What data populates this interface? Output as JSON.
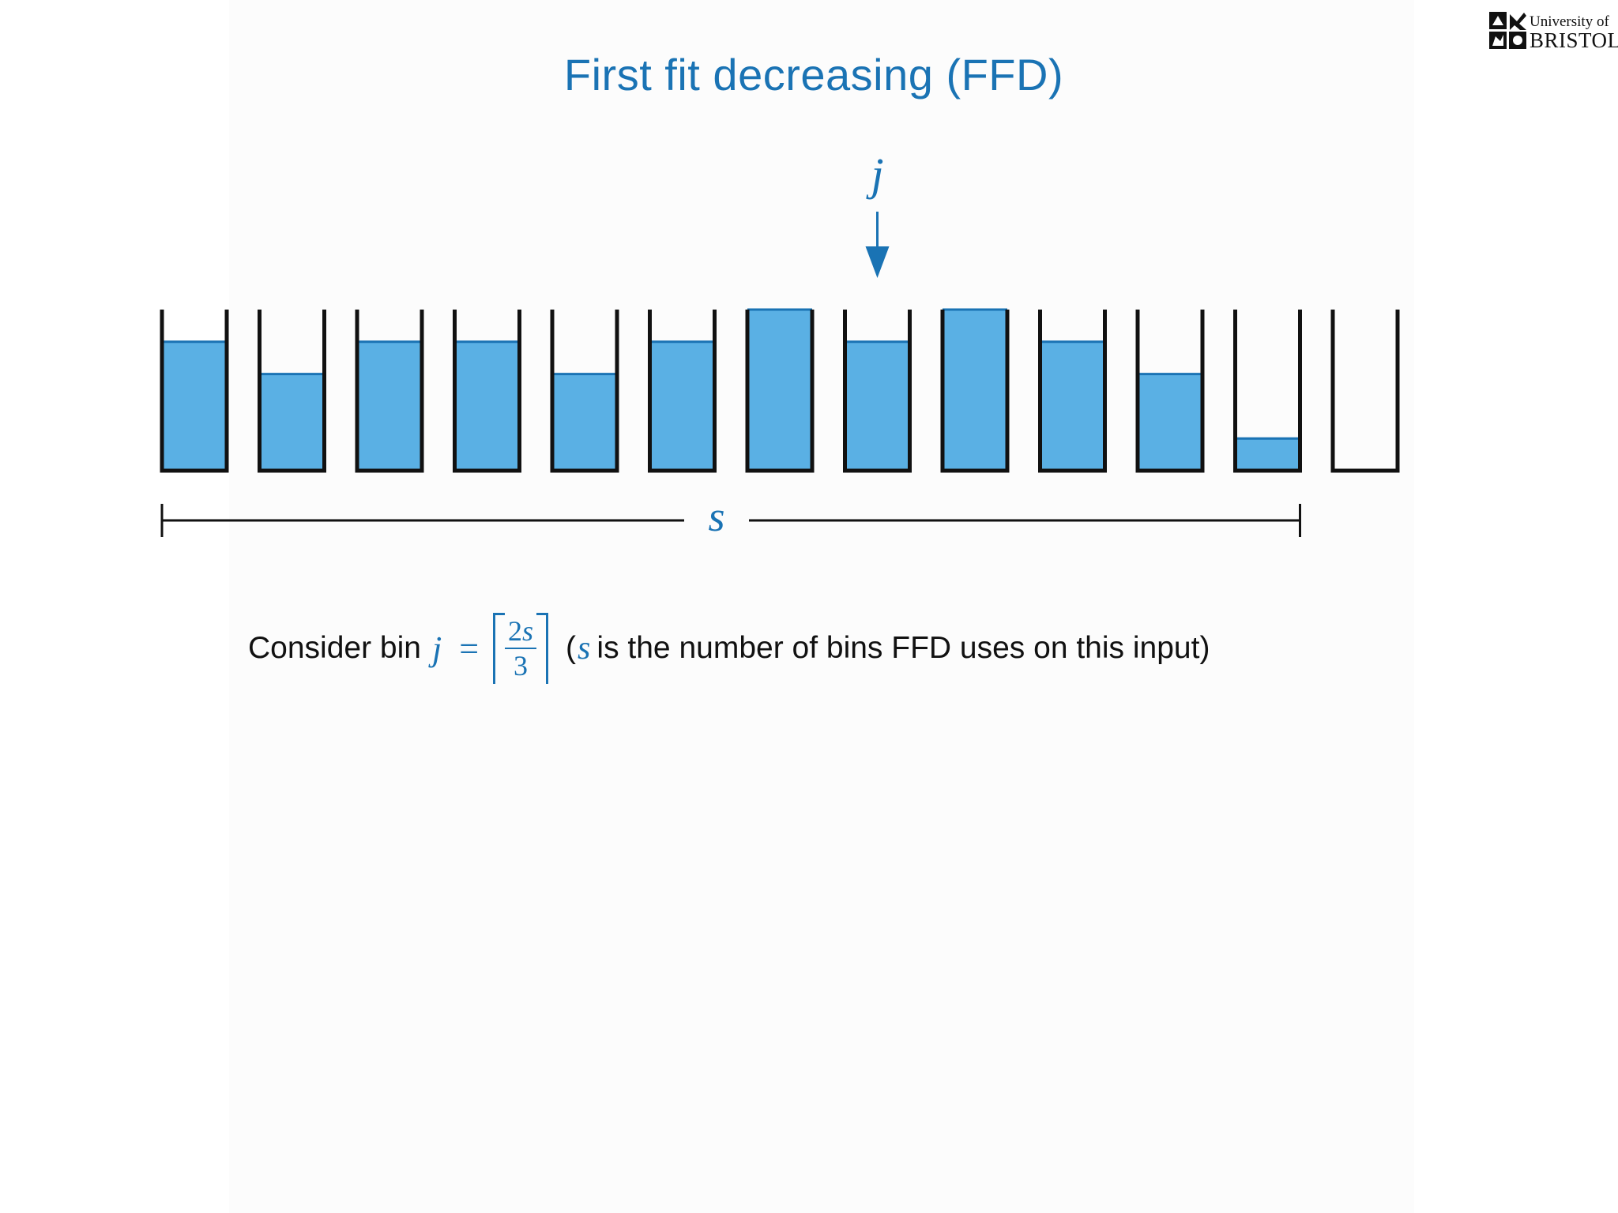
{
  "slide": {
    "title": "First fit decreasing (FFD)",
    "logo": {
      "line1": "University of",
      "line2": "BRISTOL"
    }
  },
  "diagram": {
    "pointer_label": "j",
    "pointer_bin_index": 7,
    "span_label": "s",
    "span_bins": 12,
    "fill_color": "#5ab0e4",
    "fill_edge_color": "#1a73b4",
    "bin_fills": [
      0.8,
      0.6,
      0.8,
      0.8,
      0.6,
      0.8,
      1.0,
      0.8,
      1.0,
      0.8,
      0.6,
      0.2,
      0.0
    ]
  },
  "caption": {
    "prefix": "Consider bin",
    "var_j": "j",
    "equals": "=",
    "frac_num_coef": "2",
    "frac_num_var": "s",
    "frac_den": "3",
    "paren_open": "(",
    "paren_var": "s",
    "suffix": "is the number of bins FFD uses on this input)"
  },
  "colors": {
    "accent": "#1a73b4",
    "bin_outline": "#111111",
    "text": "#111111"
  }
}
